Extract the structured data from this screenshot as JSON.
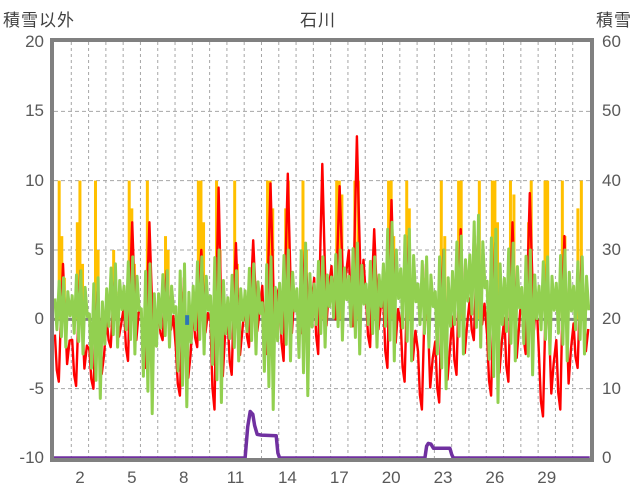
{
  "header": {
    "left_axis_title": "積雪以外",
    "title": "石川",
    "right_axis_title": "積雪"
  },
  "left_axis": {
    "ticks": [
      "20",
      "15",
      "10",
      "5",
      "0",
      "-5",
      "-10"
    ],
    "values": [
      20,
      15,
      10,
      5,
      0,
      -5,
      -10
    ],
    "min": -10,
    "max": 20
  },
  "right_axis": {
    "ticks": [
      "60",
      "50",
      "40",
      "30",
      "20",
      "10",
      "0"
    ],
    "values": [
      60,
      50,
      40,
      30,
      20,
      10,
      0
    ],
    "min": 0,
    "max": 60
  },
  "x_axis": {
    "tick_labels": [
      "2",
      "5",
      "8",
      "11",
      "14",
      "17",
      "20",
      "23",
      "26",
      "29"
    ],
    "tick_days": [
      2,
      5,
      8,
      11,
      14,
      17,
      20,
      23,
      26,
      29
    ],
    "total_days": 31
  },
  "colors": {
    "red": "#ff0000",
    "green": "#92d050",
    "orange": "#ffc000",
    "purple": "#7030a0",
    "blue": "#2e75b6",
    "frame": "#808080",
    "grid": "#a6a6a6",
    "zero_line": "#808080",
    "text": "#595959",
    "title_text": "#404040"
  },
  "chart_data": {
    "type": "line",
    "title": "石川",
    "left_axis_label": "積雪以外",
    "right_axis_label": "積雪",
    "x_range": [
      1,
      31
    ],
    "left_ylim": [
      -10,
      20
    ],
    "right_ylim": [
      0,
      60
    ],
    "grid": "dashed vertical per day; dashed horizontal at 15,10,5,-5; solid at 0",
    "legend": "none",
    "series": [
      {
        "name": "red-line",
        "axis": "left",
        "color": "#ff0000",
        "kind": "daily-envelope-line",
        "daily_min": [
          -4.5,
          -4.8,
          -5.0,
          -2.0,
          -3.0,
          -3.5,
          -1.5,
          -5.5,
          -2.0,
          -6.5,
          -4.0,
          -2.0,
          -2.5,
          -3.0,
          -1.0,
          -2.5,
          0.0,
          -0.5,
          -2.0,
          -3.5,
          -4.5,
          -6.5,
          -6.0,
          -4.0,
          -1.5,
          -5.5,
          -4.5,
          -2.5,
          -7.0,
          -6.5,
          -3.5
        ],
        "daily_max": [
          4.0,
          3.5,
          2.0,
          3.0,
          7.0,
          7.0,
          3.5,
          3.0,
          5.0,
          9.5,
          5.5,
          5.7,
          9.8,
          10.5,
          5.0,
          11.2,
          9.6,
          13.2,
          6.5,
          8.6,
          6.0,
          4.0,
          5.0,
          6.5,
          6.0,
          5.5,
          7.0,
          9.1,
          4.0,
          6.0,
          4.5
        ],
        "profile": {
          "fractions": [
            0.05,
            0.16,
            0.28,
            0.4,
            0.52,
            0.63,
            0.76,
            0.9
          ],
          "weights": [
            0.4,
            0.1,
            0.0,
            0.55,
            1.0,
            0.6,
            0.15,
            0.35
          ]
        }
      },
      {
        "name": "green-line",
        "axis": "left",
        "color": "#92d050",
        "kind": "daily-envelope-line",
        "daily_min": [
          -2.0,
          -2.5,
          -5.7,
          -2.0,
          -2.5,
          -6.8,
          -2.0,
          -6.3,
          -2.5,
          -6.0,
          -3.0,
          -2.5,
          -6.5,
          -3.0,
          -5.5,
          -2.0,
          -1.5,
          -2.5,
          -2.0,
          -3.0,
          -3.0,
          -2.0,
          -5.0,
          -2.5,
          -2.0,
          -6.0,
          -3.0,
          -4.0,
          -2.5,
          -3.0,
          -2.5
        ],
        "daily_max": [
          3.0,
          3.5,
          3.0,
          4.0,
          4.5,
          4.0,
          3.5,
          4.0,
          4.5,
          5.0,
          3.5,
          4.0,
          4.5,
          5.0,
          5.5,
          4.5,
          5.0,
          5.5,
          4.5,
          7.0,
          6.5,
          4.5,
          5.0,
          6.0,
          7.5,
          6.5,
          5.5,
          5.0,
          4.5,
          5.0,
          4.5
        ],
        "profile": {
          "fractions": [
            0.05,
            0.17,
            0.3,
            0.43,
            0.55,
            0.68,
            0.8,
            0.93
          ],
          "weights": [
            0.7,
            0.25,
            0.95,
            0.15,
            1.0,
            0.0,
            0.8,
            0.45
          ]
        }
      },
      {
        "name": "orange-bars",
        "axis": "left",
        "color": "#ffc000",
        "kind": "bars-from-zero",
        "cap": 10,
        "bars": [
          [
            1.3,
            10
          ],
          [
            1.45,
            6
          ],
          [
            1.6,
            3
          ],
          [
            2.35,
            7
          ],
          [
            2.5,
            10
          ],
          [
            2.65,
            4
          ],
          [
            3.4,
            10
          ],
          [
            3.55,
            5
          ],
          [
            4.45,
            5
          ],
          [
            4.6,
            2
          ],
          [
            5.35,
            10
          ],
          [
            5.5,
            8
          ],
          [
            5.65,
            4
          ],
          [
            6.4,
            10
          ],
          [
            6.55,
            3
          ],
          [
            7.45,
            6
          ],
          [
            7.6,
            5
          ],
          [
            8.5,
            2
          ],
          [
            9.35,
            10
          ],
          [
            9.5,
            10
          ],
          [
            9.65,
            7
          ],
          [
            10.4,
            10
          ],
          [
            10.6,
            5
          ],
          [
            11.45,
            10
          ],
          [
            11.6,
            4
          ],
          [
            12.5,
            3
          ],
          [
            13.35,
            10
          ],
          [
            13.5,
            10
          ],
          [
            13.65,
            8
          ],
          [
            14.4,
            8
          ],
          [
            14.55,
            10
          ],
          [
            15.4,
            10
          ],
          [
            15.6,
            5
          ],
          [
            16.5,
            2
          ],
          [
            17.35,
            10
          ],
          [
            17.5,
            10
          ],
          [
            17.65,
            9
          ],
          [
            18.4,
            10
          ],
          [
            18.6,
            10
          ],
          [
            19.5,
            4
          ],
          [
            20.35,
            10
          ],
          [
            20.5,
            10
          ],
          [
            20.65,
            6
          ],
          [
            21.4,
            10
          ],
          [
            21.55,
            8
          ],
          [
            22.5,
            3
          ],
          [
            23.4,
            10
          ],
          [
            23.6,
            6
          ],
          [
            24.4,
            10
          ],
          [
            24.55,
            10
          ],
          [
            25.45,
            5
          ],
          [
            25.6,
            10
          ],
          [
            26.35,
            10
          ],
          [
            26.5,
            10
          ],
          [
            26.65,
            7
          ],
          [
            27.4,
            10
          ],
          [
            27.6,
            9
          ],
          [
            28.45,
            7
          ],
          [
            28.6,
            10
          ],
          [
            29.4,
            10
          ],
          [
            29.55,
            10
          ],
          [
            30.4,
            10
          ],
          [
            30.55,
            6
          ],
          [
            31.3,
            8
          ],
          [
            31.5,
            10
          ]
        ]
      },
      {
        "name": "blue-bar",
        "axis": "left",
        "color": "#2e75b6",
        "kind": "small-bar",
        "bars": [
          {
            "day": 8.7,
            "top": 0.3,
            "bottom": -0.4
          }
        ]
      },
      {
        "name": "purple-line",
        "axis": "right",
        "color": "#7030a0",
        "kind": "step-line",
        "points": [
          [
            1.0,
            0
          ],
          [
            12.05,
            0
          ],
          [
            12.2,
            4.5
          ],
          [
            12.35,
            6.7
          ],
          [
            12.5,
            6.3
          ],
          [
            12.6,
            4.7
          ],
          [
            12.75,
            3.4
          ],
          [
            13.0,
            3.3
          ],
          [
            13.85,
            3.2
          ],
          [
            13.95,
            0.7
          ],
          [
            14.05,
            0
          ],
          [
            22.45,
            0
          ],
          [
            22.55,
            1.7
          ],
          [
            22.65,
            2.1
          ],
          [
            22.8,
            2.0
          ],
          [
            22.95,
            1.4
          ],
          [
            23.9,
            1.4
          ],
          [
            24.0,
            0.5
          ],
          [
            24.1,
            0
          ],
          [
            31.98,
            0
          ]
        ]
      }
    ]
  }
}
